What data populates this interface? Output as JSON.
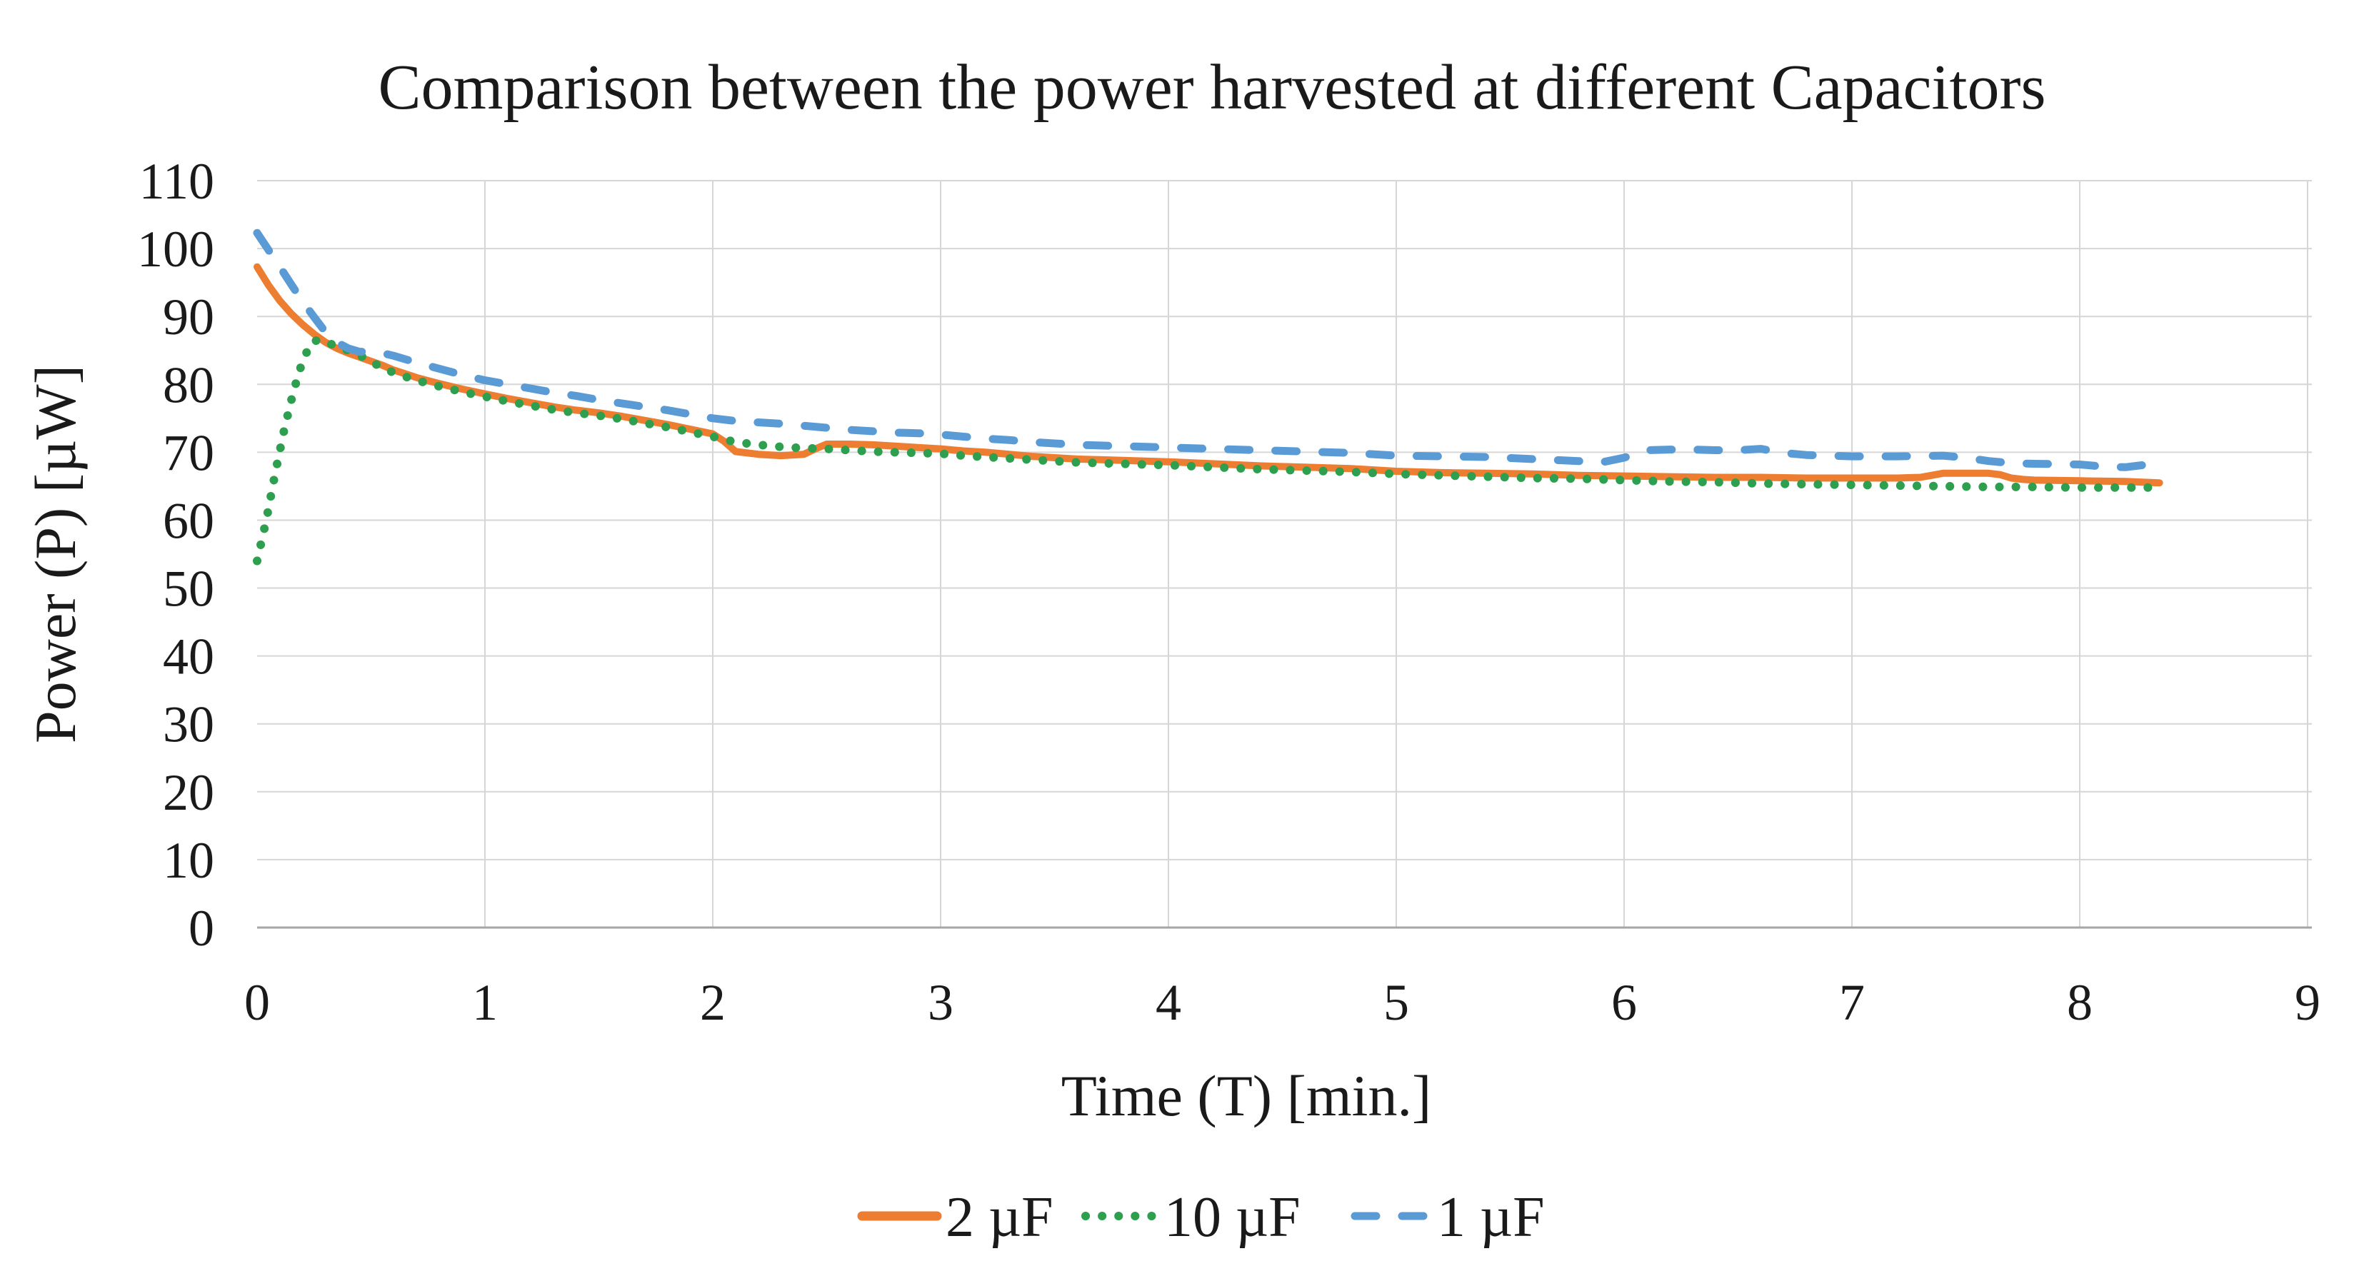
{
  "chart_data": {
    "type": "line",
    "title": "Comparison between the power harvested at different Capacitors",
    "xlabel": "Time (T) [min.]",
    "ylabel": "Power (P)  [µW]",
    "xlim": [
      0,
      9
    ],
    "ylim": [
      0,
      110
    ],
    "x_ticks": [
      0,
      1,
      2,
      3,
      4,
      5,
      6,
      7,
      8,
      9
    ],
    "y_ticks": [
      0,
      10,
      20,
      30,
      40,
      50,
      60,
      70,
      80,
      90,
      100,
      110
    ],
    "grid": true,
    "grid_color": "#d6d6d6",
    "axis_color": "#a6a6a6",
    "legend_position": "bottom-center",
    "series": [
      {
        "name": "2  µF",
        "color": "#ED7D31",
        "style": "solid",
        "points": [
          [
            0,
            97.3
          ],
          [
            0.05,
            94.6
          ],
          [
            0.1,
            92.3
          ],
          [
            0.15,
            90.4
          ],
          [
            0.2,
            88.8
          ],
          [
            0.25,
            87.4
          ],
          [
            0.3,
            86.2
          ],
          [
            0.35,
            85.3
          ],
          [
            0.4,
            84.6
          ],
          [
            0.45,
            84.0
          ],
          [
            0.5,
            83.4
          ],
          [
            0.55,
            82.8
          ],
          [
            0.6,
            82.1
          ],
          [
            0.7,
            81.0
          ],
          [
            0.8,
            80.1
          ],
          [
            0.9,
            79.3
          ],
          [
            1.0,
            78.6
          ],
          [
            1.1,
            77.9
          ],
          [
            1.2,
            77.3
          ],
          [
            1.3,
            76.7
          ],
          [
            1.4,
            76.2
          ],
          [
            1.5,
            75.8
          ],
          [
            1.6,
            75.3
          ],
          [
            1.7,
            74.7
          ],
          [
            1.8,
            74.1
          ],
          [
            1.9,
            73.4
          ],
          [
            2.0,
            72.7
          ],
          [
            2.05,
            71.6
          ],
          [
            2.1,
            70.1
          ],
          [
            2.2,
            69.7
          ],
          [
            2.3,
            69.5
          ],
          [
            2.4,
            69.7
          ],
          [
            2.45,
            70.5
          ],
          [
            2.5,
            71.2
          ],
          [
            2.6,
            71.2
          ],
          [
            2.7,
            71.1
          ],
          [
            2.8,
            70.9
          ],
          [
            2.9,
            70.7
          ],
          [
            3.0,
            70.5
          ],
          [
            3.1,
            70.2
          ],
          [
            3.2,
            70.0
          ],
          [
            3.3,
            69.7
          ],
          [
            3.4,
            69.4
          ],
          [
            3.5,
            69.2
          ],
          [
            3.6,
            69.0
          ],
          [
            3.7,
            68.9
          ],
          [
            3.8,
            68.8
          ],
          [
            3.9,
            68.7
          ],
          [
            4.0,
            68.6
          ],
          [
            4.2,
            68.3
          ],
          [
            4.4,
            68.0
          ],
          [
            4.6,
            67.8
          ],
          [
            4.8,
            67.6
          ],
          [
            5.0,
            67.2
          ],
          [
            5.2,
            67.0
          ],
          [
            5.4,
            66.9
          ],
          [
            5.6,
            66.8
          ],
          [
            5.8,
            66.6
          ],
          [
            6.0,
            66.5
          ],
          [
            6.2,
            66.4
          ],
          [
            6.4,
            66.3
          ],
          [
            6.6,
            66.3
          ],
          [
            6.8,
            66.2
          ],
          [
            7.0,
            66.2
          ],
          [
            7.2,
            66.2
          ],
          [
            7.3,
            66.3
          ],
          [
            7.35,
            66.6
          ],
          [
            7.4,
            66.9
          ],
          [
            7.5,
            66.9
          ],
          [
            7.6,
            66.9
          ],
          [
            7.65,
            66.7
          ],
          [
            7.7,
            66.2
          ],
          [
            7.75,
            66.0
          ],
          [
            7.8,
            65.9
          ],
          [
            8.0,
            65.8
          ],
          [
            8.2,
            65.7
          ],
          [
            8.35,
            65.5
          ]
        ]
      },
      {
        "name": "10  µF",
        "color": "#2E9E4F",
        "style": "dotted",
        "points": [
          [
            0,
            54.0
          ],
          [
            0.04,
            60.0
          ],
          [
            0.08,
            67.0
          ],
          [
            0.12,
            73.5
          ],
          [
            0.16,
            79.0
          ],
          [
            0.2,
            83.5
          ],
          [
            0.24,
            86.3
          ],
          [
            0.28,
            86.6
          ],
          [
            0.32,
            86.0
          ],
          [
            0.36,
            85.4
          ],
          [
            0.4,
            85.0
          ],
          [
            0.45,
            84.3
          ],
          [
            0.5,
            83.3
          ],
          [
            0.55,
            82.5
          ],
          [
            0.6,
            81.7
          ],
          [
            0.7,
            80.6
          ],
          [
            0.8,
            79.7
          ],
          [
            0.9,
            78.9
          ],
          [
            1.0,
            78.2
          ],
          [
            1.1,
            77.5
          ],
          [
            1.2,
            76.9
          ],
          [
            1.3,
            76.3
          ],
          [
            1.4,
            75.8
          ],
          [
            1.5,
            75.4
          ],
          [
            1.6,
            74.9
          ],
          [
            1.7,
            74.3
          ],
          [
            1.8,
            73.7
          ],
          [
            1.9,
            73.0
          ],
          [
            2.0,
            72.3
          ],
          [
            2.1,
            71.5
          ],
          [
            2.2,
            71.1
          ],
          [
            2.3,
            70.8
          ],
          [
            2.4,
            70.6
          ],
          [
            2.5,
            70.5
          ],
          [
            2.6,
            70.3
          ],
          [
            2.7,
            70.1
          ],
          [
            2.8,
            70.0
          ],
          [
            2.9,
            69.9
          ],
          [
            3.0,
            69.8
          ],
          [
            3.1,
            69.5
          ],
          [
            3.2,
            69.3
          ],
          [
            3.3,
            69.1
          ],
          [
            3.4,
            68.9
          ],
          [
            3.5,
            68.7
          ],
          [
            3.6,
            68.5
          ],
          [
            3.7,
            68.4
          ],
          [
            3.8,
            68.3
          ],
          [
            3.9,
            68.2
          ],
          [
            4.0,
            68.1
          ],
          [
            4.2,
            67.8
          ],
          [
            4.4,
            67.5
          ],
          [
            4.6,
            67.3
          ],
          [
            4.8,
            67.1
          ],
          [
            5.0,
            66.8
          ],
          [
            5.2,
            66.6
          ],
          [
            5.4,
            66.4
          ],
          [
            5.6,
            66.2
          ],
          [
            5.8,
            66.1
          ],
          [
            6.0,
            65.9
          ],
          [
            6.2,
            65.7
          ],
          [
            6.4,
            65.6
          ],
          [
            6.6,
            65.4
          ],
          [
            6.8,
            65.3
          ],
          [
            7.0,
            65.2
          ],
          [
            7.2,
            65.1
          ],
          [
            7.4,
            65.0
          ],
          [
            7.6,
            64.9
          ],
          [
            7.8,
            64.9
          ],
          [
            8.0,
            64.8
          ],
          [
            8.2,
            64.8
          ],
          [
            8.35,
            64.8
          ]
        ]
      },
      {
        "name": "1  µF",
        "color": "#5B9BD5",
        "style": "dashed",
        "points": [
          [
            0,
            102.3
          ],
          [
            0.05,
            99.8
          ],
          [
            0.1,
            97.3
          ],
          [
            0.15,
            94.7
          ],
          [
            0.2,
            92.2
          ],
          [
            0.25,
            89.9
          ],
          [
            0.3,
            87.7
          ],
          [
            0.35,
            86.2
          ],
          [
            0.4,
            85.3
          ],
          [
            0.45,
            84.8
          ],
          [
            0.5,
            84.8
          ],
          [
            0.55,
            84.6
          ],
          [
            0.6,
            84.2
          ],
          [
            0.7,
            83.2
          ],
          [
            0.8,
            82.3
          ],
          [
            0.9,
            81.4
          ],
          [
            1.0,
            80.6
          ],
          [
            1.1,
            80.0
          ],
          [
            1.2,
            79.4
          ],
          [
            1.3,
            78.8
          ],
          [
            1.4,
            78.3
          ],
          [
            1.5,
            77.7
          ],
          [
            1.6,
            77.2
          ],
          [
            1.7,
            76.7
          ],
          [
            1.8,
            76.2
          ],
          [
            1.9,
            75.6
          ],
          [
            2.0,
            75.0
          ],
          [
            2.1,
            74.6
          ],
          [
            2.2,
            74.4
          ],
          [
            2.3,
            74.2
          ],
          [
            2.4,
            73.9
          ],
          [
            2.5,
            73.6
          ],
          [
            2.6,
            73.3
          ],
          [
            2.7,
            73.1
          ],
          [
            2.8,
            72.9
          ],
          [
            2.9,
            72.8
          ],
          [
            3.0,
            72.6
          ],
          [
            3.1,
            72.3
          ],
          [
            3.2,
            72.0
          ],
          [
            3.3,
            71.8
          ],
          [
            3.4,
            71.5
          ],
          [
            3.5,
            71.3
          ],
          [
            3.6,
            71.1
          ],
          [
            3.7,
            71.0
          ],
          [
            3.8,
            70.9
          ],
          [
            3.9,
            70.8
          ],
          [
            4.0,
            70.7
          ],
          [
            4.2,
            70.5
          ],
          [
            4.4,
            70.3
          ],
          [
            4.6,
            70.1
          ],
          [
            4.8,
            69.9
          ],
          [
            5.0,
            69.5
          ],
          [
            5.2,
            69.4
          ],
          [
            5.4,
            69.3
          ],
          [
            5.6,
            69.0
          ],
          [
            5.8,
            68.7
          ],
          [
            5.9,
            68.5
          ],
          [
            6.0,
            69.2
          ],
          [
            6.1,
            70.3
          ],
          [
            6.2,
            70.4
          ],
          [
            6.3,
            70.4
          ],
          [
            6.4,
            70.3
          ],
          [
            6.5,
            70.3
          ],
          [
            6.6,
            70.5
          ],
          [
            6.7,
            69.9
          ],
          [
            6.8,
            69.6
          ],
          [
            6.9,
            69.5
          ],
          [
            7.0,
            69.4
          ],
          [
            7.2,
            69.4
          ],
          [
            7.4,
            69.5
          ],
          [
            7.5,
            69.2
          ],
          [
            7.6,
            68.7
          ],
          [
            7.7,
            68.4
          ],
          [
            7.8,
            68.3
          ],
          [
            8.0,
            68.2
          ],
          [
            8.1,
            67.9
          ],
          [
            8.2,
            67.8
          ],
          [
            8.3,
            68.2
          ],
          [
            8.35,
            68.3
          ]
        ]
      }
    ]
  }
}
